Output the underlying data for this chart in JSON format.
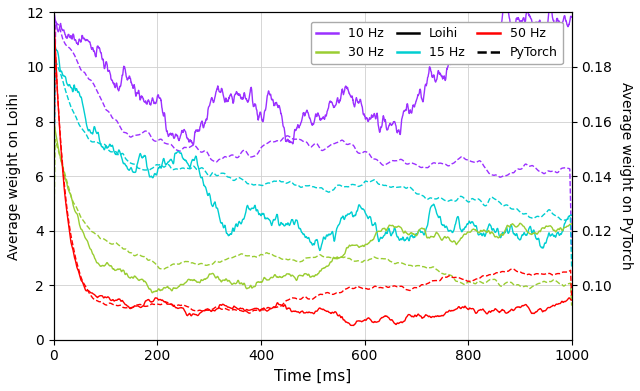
{
  "xlabel": "Time [ms]",
  "ylabel_left": "Average weight on Loihi",
  "ylabel_right": "Average weight on PyTorch",
  "xlim": [
    0,
    1000
  ],
  "ylim_left": [
    0,
    12
  ],
  "ylim_right": [
    0.08,
    0.2
  ],
  "yticks_right": [
    0.1,
    0.12,
    0.14,
    0.16,
    0.18
  ],
  "yticks_left": [
    0,
    2,
    4,
    6,
    8,
    10,
    12
  ],
  "xticks": [
    0,
    200,
    400,
    600,
    800,
    1000
  ],
  "colors": {
    "10hz": "#9B30FF",
    "15hz": "#00CED1",
    "30hz": "#9ACD32",
    "50hz": "#FF0000"
  },
  "legend_solid": "Loihi",
  "legend_dashed": "PyTorch",
  "figsize": [
    6.4,
    3.91
  ],
  "dpi": 100,
  "lw": 1.0
}
